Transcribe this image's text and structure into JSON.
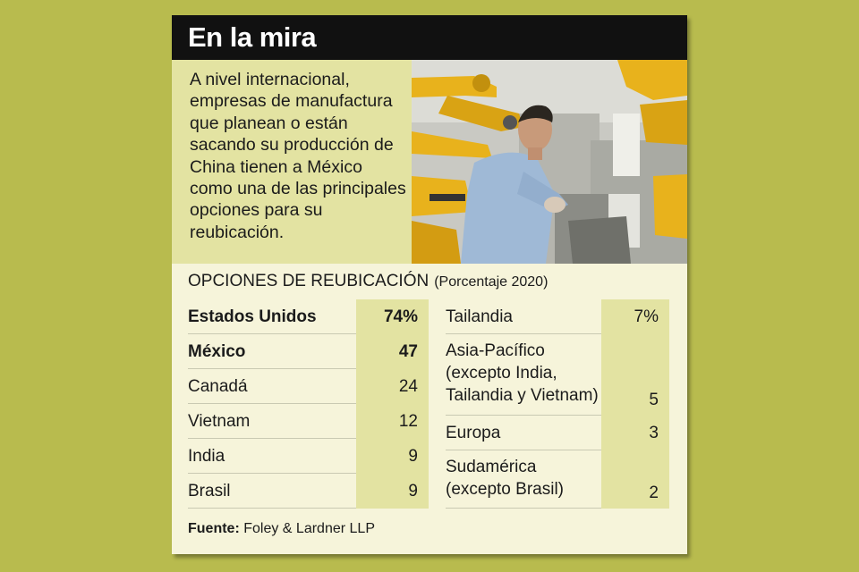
{
  "title": "En la mira",
  "intro": "A nivel internacional, empresas de manufactura que planean o están sacando su producción de China tienen a México como una de las principales opciones para su reubicación.",
  "chart_data": {
    "type": "table",
    "title": "OPCIONES DE REUBICACIÓN",
    "subtitle": "(Porcentaje 2020)",
    "unit": "%",
    "rows": [
      {
        "label": "Estados Unidos",
        "value": 74,
        "display": "74%",
        "bold": true
      },
      {
        "label": "México",
        "value": 47,
        "display": "47",
        "bold": true
      },
      {
        "label": "Canadá",
        "value": 24,
        "display": "24"
      },
      {
        "label": "Vietnam",
        "value": 12,
        "display": "12"
      },
      {
        "label": "India",
        "value": 9,
        "display": "9"
      },
      {
        "label": "Brasil",
        "value": 9,
        "display": "9"
      },
      {
        "label": "Tailandia",
        "value": 7,
        "display": "7%"
      },
      {
        "label": "Asia-Pacífico (excepto India, Tailandia y Vietnam)",
        "value": 5,
        "display": "5"
      },
      {
        "label": "Europa",
        "value": 3,
        "display": "3"
      },
      {
        "label": "Sudamérica (excepto Brasil)",
        "value": 2,
        "display": "2"
      }
    ]
  },
  "source": {
    "label": "Fuente:",
    "text": "Foley & Lardner LLP"
  },
  "photo": {
    "icon": "factory-worker-robots-photo",
    "colors": {
      "robot": "#e8b21c",
      "shirt": "#9fb9d6",
      "background": "#c8c8c2"
    }
  },
  "colors": {
    "page_background": "#b8bb4e",
    "card_background": "#f6f4da",
    "highlight": "#e3e3a2",
    "title_bar": "#111111"
  }
}
